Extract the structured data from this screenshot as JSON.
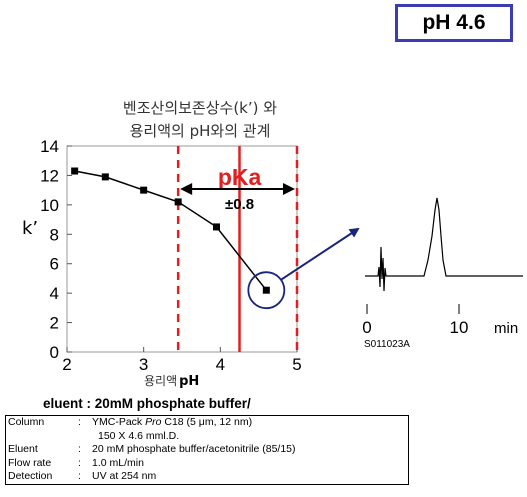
{
  "badge": {
    "label": "pH 4.6"
  },
  "chart_data": {
    "type": "line",
    "title_lines": [
      "벤조산의보존상수(k’) 와",
      "용리액의 pH와의 관계"
    ],
    "xlabel_prefix": "용리액",
    "xlabel_suffix": "pH",
    "ylabel": "k’",
    "xlim": [
      2,
      5
    ],
    "ylim": [
      0,
      14
    ],
    "xticks": [
      2,
      3,
      4,
      5
    ],
    "yticks": [
      0,
      2,
      4,
      6,
      8,
      10,
      12,
      14
    ],
    "series": [
      {
        "x": [
          2.1,
          2.5,
          3.0,
          3.45,
          3.95,
          4.6
        ],
        "y": [
          12.3,
          11.9,
          11.0,
          10.2,
          8.5,
          4.2
        ]
      }
    ],
    "pka": {
      "value": 4.25,
      "window": [
        3.45,
        5.0
      ],
      "label": "pKa",
      "range_label": "±0.8"
    },
    "highlight_x": 4.6,
    "colors": {
      "line": "#000000",
      "dashed": "#e02020",
      "pka": "#e02020",
      "arrow": "#1a237e"
    }
  },
  "chromatogram": {
    "ticks": [
      "0",
      "10"
    ],
    "unit": "min",
    "sample_id": "S011023A"
  },
  "eluent_title": "eluent : 20mM phosphate buffer/",
  "conditions": [
    {
      "key": "Column",
      "value": "YMC-Pack Pro C18 (5 μm, 12 nm)"
    },
    {
      "key": "",
      "value": "150 X 4.6 mml.D."
    },
    {
      "key": "Eluent",
      "value": "20 mM phosphate buffer/acetonitrile (85/15)"
    },
    {
      "key": "Flow rate",
      "value": "1.0 mL/min"
    },
    {
      "key": "Detection",
      "value": "UV at 254 nm"
    }
  ]
}
